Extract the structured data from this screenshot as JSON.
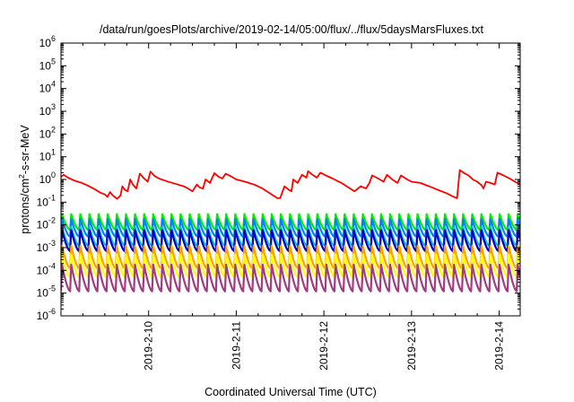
{
  "chart_data": {
    "type": "line",
    "title": "/data/run/goesPlots/archive/2019-02-14/05:00/flux/../flux/5daysMarsFluxes.txt",
    "xlabel": "Coordinated Universal Time (UTC)",
    "ylabel_prefix": "protons/cm",
    "ylabel_sup": "2",
    "ylabel_suffix": "-s-sr-MeV",
    "yscale": "log",
    "ylim_exp": [
      -6,
      6
    ],
    "y_ticks": [
      {
        "base": "10",
        "exp": "-6"
      },
      {
        "base": "10",
        "exp": "-5"
      },
      {
        "base": "10",
        "exp": "-4"
      },
      {
        "base": "10",
        "exp": "-3"
      },
      {
        "base": "10",
        "exp": "-2"
      },
      {
        "base": "10",
        "exp": "-1"
      },
      {
        "base": "10",
        "exp": "0"
      },
      {
        "base": "10",
        "exp": "1"
      },
      {
        "base": "10",
        "exp": "2"
      },
      {
        "base": "10",
        "exp": "3"
      },
      {
        "base": "10",
        "exp": "4"
      },
      {
        "base": "10",
        "exp": "5"
      },
      {
        "base": "10",
        "exp": "6"
      }
    ],
    "xlim_days": [
      9.0,
      14.24
    ],
    "x_ticks": [
      {
        "label": "2019-2-10",
        "day": 10
      },
      {
        "label": "2019-2-11",
        "day": 11
      },
      {
        "label": "2019-2-12",
        "day": 12
      },
      {
        "label": "2019-2-13",
        "day": 13
      },
      {
        "label": "2019-2-14",
        "day": 14
      }
    ],
    "grid": false,
    "red_series": {
      "color": "#ff0000",
      "points": [
        [
          9.0,
          1.3
        ],
        [
          9.03,
          1.6
        ],
        [
          9.08,
          1.2
        ],
        [
          9.15,
          0.9
        ],
        [
          9.22,
          0.75
        ],
        [
          9.3,
          0.55
        ],
        [
          9.38,
          0.38
        ],
        [
          9.45,
          0.26
        ],
        [
          9.5,
          0.22
        ],
        [
          9.53,
          0.17
        ],
        [
          9.56,
          0.28
        ],
        [
          9.59,
          0.2
        ],
        [
          9.64,
          0.14
        ],
        [
          9.68,
          0.2
        ],
        [
          9.7,
          0.5
        ],
        [
          9.73,
          0.35
        ],
        [
          9.76,
          0.3
        ],
        [
          9.79,
          1.0
        ],
        [
          9.82,
          0.6
        ],
        [
          9.86,
          0.4
        ],
        [
          9.9,
          1.8
        ],
        [
          9.95,
          1.1
        ],
        [
          9.99,
          0.8
        ],
        [
          10.02,
          2.2
        ],
        [
          10.07,
          1.4
        ],
        [
          10.12,
          1.1
        ],
        [
          10.2,
          0.85
        ],
        [
          10.3,
          0.65
        ],
        [
          10.4,
          0.5
        ],
        [
          10.45,
          0.4
        ],
        [
          10.5,
          0.3
        ],
        [
          10.55,
          0.6
        ],
        [
          10.58,
          0.45
        ],
        [
          10.62,
          0.4
        ],
        [
          10.65,
          1.0
        ],
        [
          10.7,
          0.7
        ],
        [
          10.75,
          1.9
        ],
        [
          10.8,
          1.3
        ],
        [
          10.84,
          1.1
        ],
        [
          10.88,
          1.8
        ],
        [
          10.95,
          1.3
        ],
        [
          11.0,
          1.0
        ],
        [
          11.1,
          0.8
        ],
        [
          11.2,
          0.6
        ],
        [
          11.3,
          0.4
        ],
        [
          11.36,
          0.28
        ],
        [
          11.42,
          0.2
        ],
        [
          11.47,
          0.15
        ],
        [
          11.5,
          0.15
        ],
        [
          11.55,
          0.5
        ],
        [
          11.6,
          0.35
        ],
        [
          11.63,
          0.3
        ],
        [
          11.65,
          1.0
        ],
        [
          11.7,
          0.7
        ],
        [
          11.75,
          1.6
        ],
        [
          11.8,
          1.2
        ],
        [
          11.82,
          2.3
        ],
        [
          11.87,
          1.6
        ],
        [
          11.92,
          1.2
        ],
        [
          11.96,
          2.0
        ],
        [
          12.02,
          1.5
        ],
        [
          12.1,
          1.1
        ],
        [
          12.2,
          0.7
        ],
        [
          12.3,
          0.4
        ],
        [
          12.35,
          0.3
        ],
        [
          12.42,
          0.5
        ],
        [
          12.48,
          0.4
        ],
        [
          12.52,
          0.7
        ],
        [
          12.55,
          1.5
        ],
        [
          12.62,
          1.1
        ],
        [
          12.68,
          0.8
        ],
        [
          12.72,
          1.6
        ],
        [
          12.78,
          1.0
        ],
        [
          12.84,
          0.7
        ],
        [
          12.88,
          1.5
        ],
        [
          12.95,
          1.0
        ],
        [
          13.0,
          0.8
        ],
        [
          13.1,
          0.7
        ],
        [
          13.2,
          0.5
        ],
        [
          13.3,
          0.35
        ],
        [
          13.4,
          0.25
        ],
        [
          13.47,
          0.18
        ],
        [
          13.52,
          0.15
        ],
        [
          13.55,
          2.6
        ],
        [
          13.6,
          1.9
        ],
        [
          13.65,
          1.5
        ],
        [
          13.7,
          1.0
        ],
        [
          13.75,
          0.8
        ],
        [
          13.8,
          0.55
        ],
        [
          13.82,
          0.4
        ],
        [
          13.85,
          0.8
        ],
        [
          13.9,
          0.7
        ],
        [
          13.95,
          0.6
        ],
        [
          13.98,
          2.0
        ],
        [
          14.05,
          1.5
        ],
        [
          14.12,
          1.1
        ],
        [
          14.18,
          0.8
        ],
        [
          14.24,
          0.6
        ]
      ]
    },
    "periodic_series": {
      "start_day": 9.0,
      "period_days": 0.104,
      "series": [
        {
          "color": "#00ee00",
          "min": 0.006,
          "max": 0.03
        },
        {
          "color": "#0080ff",
          "min": 0.003,
          "max": 0.018
        },
        {
          "color": "#00c8c8",
          "min": 0.0012,
          "max": 0.008
        },
        {
          "color": "#0000c0",
          "min": 0.0007,
          "max": 0.006
        },
        {
          "color": "#ffa000",
          "min": 0.00012,
          "max": 0.0012
        },
        {
          "color": "#ffff00",
          "min": 5e-05,
          "max": 0.0005
        },
        {
          "color": "#a03c80",
          "min": 1.2e-05,
          "max": 0.00018
        }
      ]
    }
  }
}
